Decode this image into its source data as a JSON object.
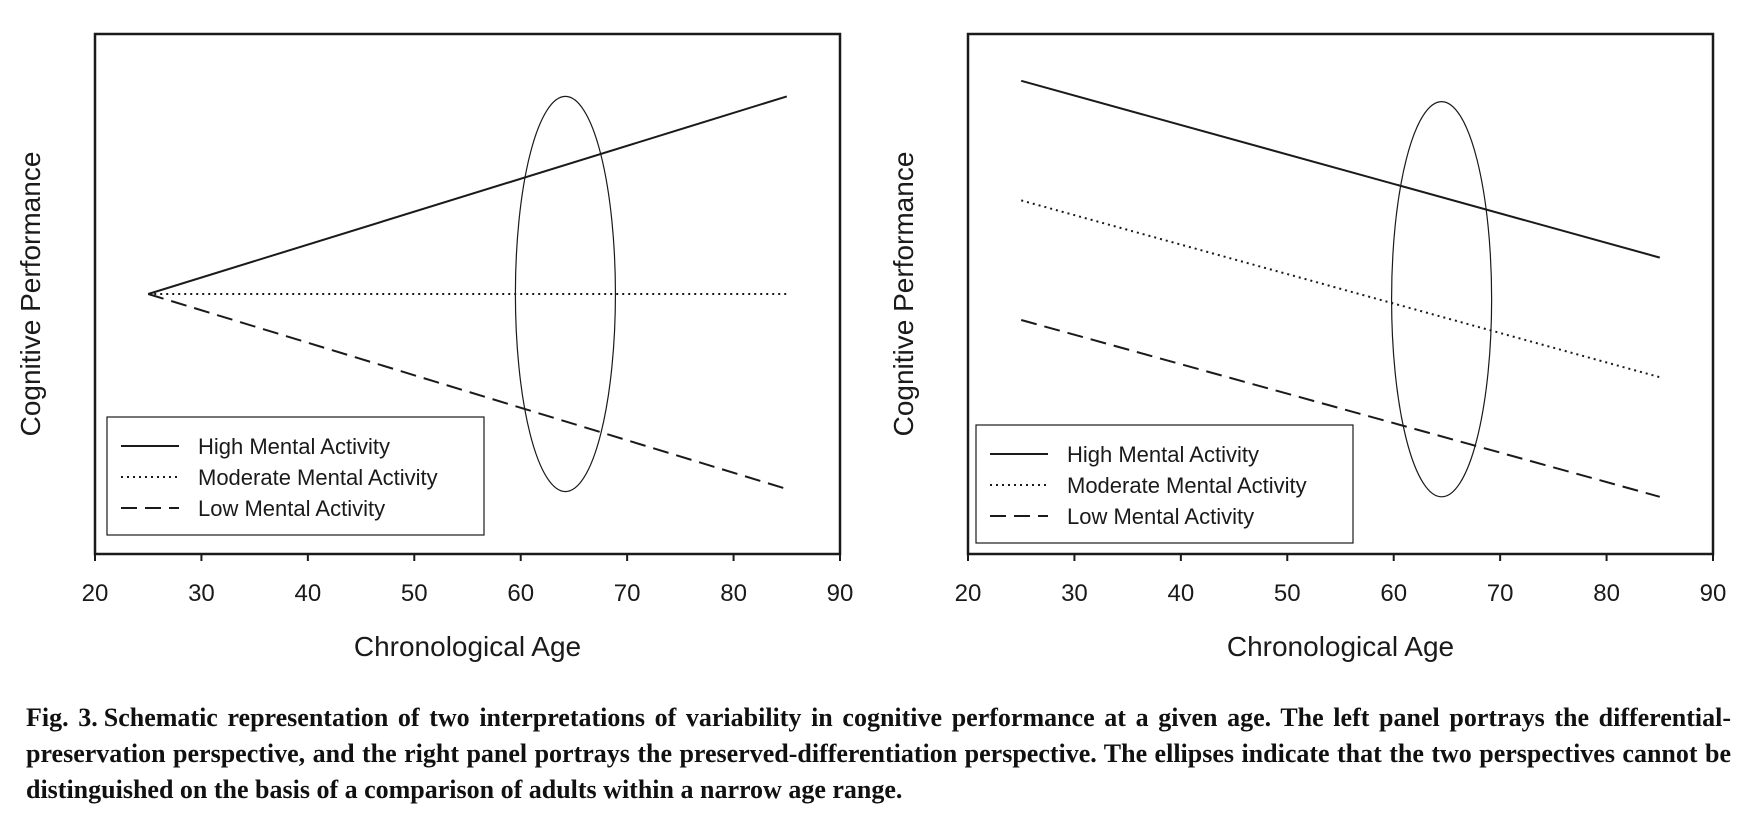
{
  "figure": {
    "caption_label": "Fig. 3.",
    "caption_text": "Schematic representation of two interpretations of variability in cognitive performance at a given age. The left panel portrays the differential-preservation perspective, and the right panel portrays the preserved-differentiation perspective. The ellipses indicate that the two perspectives cannot be distinguished on the basis of a comparison of adults within a narrow age range."
  },
  "colors": {
    "line": "#1a1a1a",
    "frame": "#1a1a1a"
  },
  "chart_data": [
    {
      "type": "line",
      "title": "",
      "xlabel": "Chronological Age",
      "ylabel": "Cognitive Performance",
      "xlim": [
        20,
        90
      ],
      "ylim": [
        0,
        100
      ],
      "xticks": [
        20,
        30,
        40,
        50,
        60,
        70,
        80,
        90
      ],
      "yticks_shown": false,
      "grid": false,
      "legend": "bottom-left",
      "series": [
        {
          "name": "High Mental Activity",
          "style": "solid",
          "x": [
            25,
            85
          ],
          "y": [
            50,
            88
          ]
        },
        {
          "name": "Moderate Mental Activity",
          "style": "dotted",
          "x": [
            25,
            85
          ],
          "y": [
            50,
            50
          ]
        },
        {
          "name": "Low Mental Activity",
          "style": "dashed",
          "x": [
            25,
            85
          ],
          "y": [
            50,
            12.5
          ]
        }
      ],
      "annotations": [
        {
          "type": "ellipse",
          "cx": 64.2,
          "cy": 50,
          "rx": 4.7,
          "ry": 38
        }
      ]
    },
    {
      "type": "line",
      "title": "",
      "xlabel": "Chronological Age",
      "ylabel": "Cognitive Performance",
      "xlim": [
        20,
        90
      ],
      "ylim": [
        0,
        100
      ],
      "xticks": [
        20,
        30,
        40,
        50,
        60,
        70,
        80,
        90
      ],
      "yticks_shown": false,
      "grid": false,
      "legend": "bottom-left",
      "series": [
        {
          "name": "High Mental Activity",
          "style": "solid",
          "x": [
            25,
            85
          ],
          "y": [
            91,
            57
          ]
        },
        {
          "name": "Moderate Mental Activity",
          "style": "dotted",
          "x": [
            25,
            85
          ],
          "y": [
            68,
            34
          ]
        },
        {
          "name": "Low Mental Activity",
          "style": "dashed",
          "x": [
            25,
            85
          ],
          "y": [
            45,
            11
          ]
        }
      ],
      "annotations": [
        {
          "type": "ellipse",
          "cx": 64.5,
          "cy": 49,
          "rx": 4.7,
          "ry": 38
        }
      ]
    }
  ]
}
